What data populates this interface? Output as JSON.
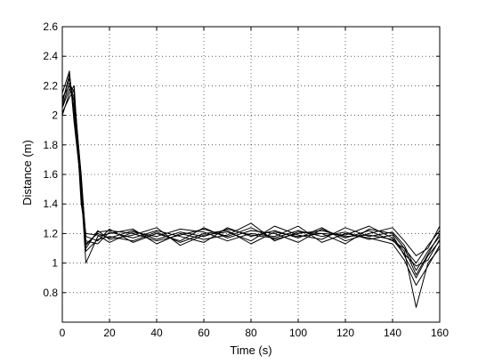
{
  "chart_data": {
    "type": "line",
    "title": "",
    "xlabel": "Time (s)",
    "ylabel": "Distance (m)",
    "xlim": [
      0,
      160
    ],
    "ylim": [
      0.6,
      2.6
    ],
    "xticks": [
      0,
      20,
      40,
      60,
      80,
      100,
      120,
      140,
      160
    ],
    "yticks": [
      0.8,
      1,
      1.2,
      1.4,
      1.6,
      1.8,
      2,
      2.2,
      2.4,
      2.6
    ],
    "grid": true,
    "grid_style": "dotted",
    "legend": "none",
    "line_color": "#000000",
    "series": [
      {
        "x": [
          0,
          3,
          5,
          8,
          10,
          15,
          20,
          30,
          40,
          50,
          60,
          70,
          80,
          90,
          100,
          110,
          120,
          130,
          140,
          145,
          150,
          155,
          160
        ],
        "values": [
          2.05,
          2.18,
          2.1,
          1.5,
          1.13,
          1.2,
          1.17,
          1.22,
          1.16,
          1.21,
          1.18,
          1.23,
          1.19,
          1.17,
          1.22,
          1.18,
          1.21,
          1.16,
          1.19,
          1.05,
          0.9,
          1.05,
          1.15
        ]
      },
      {
        "x": [
          0,
          3,
          5,
          8,
          10,
          15,
          20,
          30,
          40,
          50,
          60,
          70,
          80,
          90,
          100,
          110,
          120,
          130,
          140,
          145,
          150,
          155,
          160
        ],
        "values": [
          2.1,
          2.25,
          2.05,
          1.55,
          1.18,
          1.15,
          1.23,
          1.14,
          1.2,
          1.15,
          1.24,
          1.17,
          1.22,
          1.2,
          1.14,
          1.23,
          1.17,
          1.22,
          1.15,
          1.1,
          1.0,
          1.12,
          1.22
        ]
      },
      {
        "x": [
          0,
          3,
          5,
          8,
          10,
          15,
          20,
          30,
          40,
          50,
          60,
          70,
          80,
          90,
          100,
          110,
          120,
          130,
          140,
          145,
          150,
          155,
          160
        ],
        "values": [
          2.0,
          2.15,
          2.2,
          1.45,
          1.1,
          1.22,
          1.16,
          1.19,
          1.24,
          1.12,
          1.19,
          1.21,
          1.15,
          1.25,
          1.19,
          1.16,
          1.24,
          1.18,
          1.21,
          1.12,
          0.95,
          1.08,
          1.18
        ]
      },
      {
        "x": [
          0,
          3,
          5,
          8,
          10,
          15,
          20,
          30,
          40,
          50,
          60,
          70,
          80,
          90,
          100,
          110,
          120,
          130,
          140,
          145,
          150,
          155,
          160
        ],
        "values": [
          2.08,
          2.28,
          2.0,
          1.5,
          1.0,
          1.18,
          1.2,
          1.23,
          1.13,
          1.2,
          1.16,
          1.19,
          1.27,
          1.15,
          1.21,
          1.2,
          1.19,
          1.25,
          1.17,
          1.08,
          0.7,
          1.0,
          1.1
        ]
      },
      {
        "x": [
          0,
          3,
          5,
          8,
          10,
          15,
          20,
          30,
          40,
          50,
          60,
          70,
          80,
          90,
          100,
          110,
          120,
          130,
          140,
          145,
          150,
          155,
          160
        ],
        "values": [
          2.12,
          2.2,
          2.12,
          1.6,
          1.15,
          1.13,
          1.21,
          1.17,
          1.22,
          1.18,
          1.14,
          1.24,
          1.18,
          1.22,
          1.17,
          1.24,
          1.15,
          1.2,
          1.24,
          1.15,
          1.05,
          1.1,
          1.25
        ]
      },
      {
        "x": [
          0,
          3,
          5,
          8,
          10,
          15,
          20,
          30,
          40,
          50,
          60,
          70,
          80,
          90,
          100,
          110,
          120,
          130,
          140,
          145,
          150,
          155,
          160
        ],
        "values": [
          2.02,
          2.12,
          2.18,
          1.4,
          1.2,
          1.19,
          1.14,
          1.21,
          1.18,
          1.23,
          1.21,
          1.15,
          1.2,
          1.18,
          1.25,
          1.14,
          1.2,
          1.17,
          1.13,
          1.02,
          0.85,
          0.98,
          1.12
        ]
      },
      {
        "x": [
          0,
          3,
          5,
          8,
          10,
          15,
          20,
          30,
          40,
          50,
          60,
          70,
          80,
          90,
          100,
          110,
          120,
          130,
          140,
          145,
          150,
          155,
          160
        ],
        "values": [
          2.15,
          2.3,
          1.95,
          1.52,
          1.08,
          1.16,
          1.18,
          1.15,
          1.21,
          1.14,
          1.2,
          1.22,
          1.13,
          1.21,
          1.18,
          1.2,
          1.13,
          1.23,
          1.2,
          1.1,
          0.92,
          1.06,
          1.2
        ]
      },
      {
        "x": [
          0,
          3,
          5,
          8,
          10,
          15,
          20,
          30,
          40,
          50,
          60,
          70,
          80,
          90,
          100,
          110,
          120,
          130,
          140,
          145,
          150,
          155,
          160
        ],
        "values": [
          2.06,
          2.22,
          2.15,
          1.58,
          1.12,
          1.21,
          1.22,
          1.2,
          1.15,
          1.19,
          1.23,
          1.18,
          1.24,
          1.16,
          1.2,
          1.22,
          1.18,
          1.19,
          1.16,
          1.06,
          0.98,
          1.02,
          1.16
        ]
      }
    ]
  }
}
